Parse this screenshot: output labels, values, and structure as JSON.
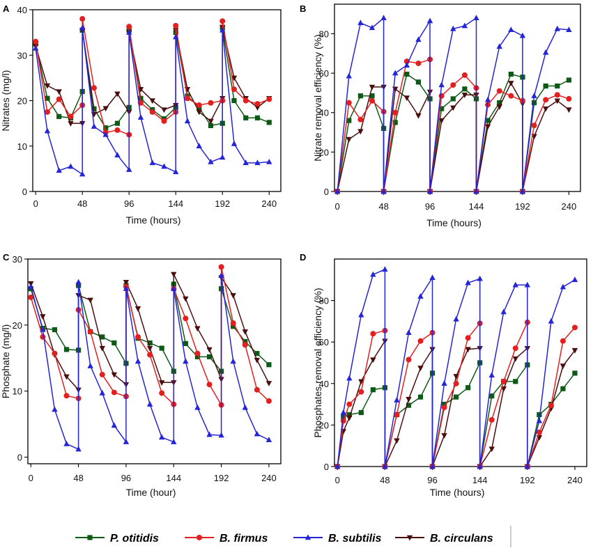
{
  "chart_data": [
    {
      "type": "line",
      "panel_label": "A",
      "xlabel": "Time (hours)",
      "ylabel": "Nitrates (mg/l)",
      "xlim": [
        -3,
        252
      ],
      "ylim": [
        0,
        40
      ],
      "xticks": [
        0,
        48,
        96,
        144,
        192,
        240
      ],
      "yticks": [
        0,
        10,
        20,
        30,
        40
      ],
      "series": [
        {
          "name": "P. otitidis",
          "x": [
            0,
            12,
            24,
            36,
            48,
            48,
            60,
            72,
            84,
            96,
            96,
            108,
            120,
            132,
            144,
            144,
            156,
            168,
            180,
            192,
            192,
            204,
            216,
            228,
            240
          ],
          "values": [
            32.5,
            20.5,
            16.5,
            16.2,
            22,
            35.5,
            18.2,
            14,
            15,
            18.5,
            35.5,
            20.5,
            18,
            16,
            18.5,
            35,
            21,
            18.5,
            14.5,
            15,
            36,
            20,
            16.2,
            16.2,
            15.2
          ]
        },
        {
          "name": "B. firmus",
          "x": [
            0,
            12,
            24,
            36,
            48,
            48,
            60,
            72,
            84,
            96,
            96,
            108,
            120,
            132,
            144,
            144,
            156,
            168,
            180,
            192,
            192,
            204,
            216,
            228,
            240
          ],
          "values": [
            33,
            17.5,
            20.3,
            16.5,
            19,
            38,
            22.8,
            13,
            13.5,
            12.5,
            36.3,
            19.5,
            17.5,
            15.5,
            17.5,
            36.5,
            20.5,
            19,
            19.5,
            20,
            37.5,
            22.5,
            20,
            19.3,
            20.3
          ]
        },
        {
          "name": "B. subtilis",
          "x": [
            0,
            12,
            24,
            36,
            48,
            48,
            60,
            72,
            84,
            96,
            96,
            108,
            120,
            132,
            144,
            144,
            156,
            168,
            180,
            192,
            192,
            204,
            216,
            228,
            240
          ],
          "values": [
            31.5,
            13.3,
            4.6,
            5.5,
            3.8,
            36,
            14.3,
            12.5,
            8,
            4.8,
            35,
            16.3,
            6.3,
            5.5,
            4.3,
            34,
            15.5,
            10,
            6.5,
            7.5,
            35.5,
            10.5,
            6.3,
            6.3,
            6.5
          ]
        },
        {
          "name": "B. circulans",
          "x": [
            0,
            12,
            24,
            36,
            48,
            48,
            60,
            72,
            84,
            96,
            96,
            108,
            120,
            132,
            144,
            144,
            156,
            168,
            180,
            192,
            192,
            204,
            216,
            228,
            240
          ],
          "values": [
            32,
            23.3,
            22,
            15,
            15,
            35.5,
            17,
            18.3,
            21.5,
            17.5,
            35,
            22.5,
            20,
            18,
            19,
            35.5,
            22.5,
            17.5,
            15.5,
            20.5,
            36.2,
            25,
            20.5,
            18.5,
            20.5
          ]
        }
      ]
    },
    {
      "type": "line",
      "panel_label": "B",
      "xlabel": "Time (hours)",
      "ylabel": "Nitrate removal efficiency (%)",
      "xlim": [
        -3,
        252
      ],
      "ylim": [
        0,
        95
      ],
      "xticks": [
        0,
        48,
        96,
        144,
        192,
        240
      ],
      "yticks": [
        0,
        20,
        40,
        60,
        80
      ],
      "series": [
        {
          "name": "P. otitidis",
          "x": [
            0,
            12,
            24,
            36,
            48,
            48,
            60,
            72,
            84,
            96,
            96,
            108,
            120,
            132,
            144,
            144,
            156,
            168,
            180,
            192,
            192,
            204,
            216,
            228,
            240
          ],
          "values": [
            0,
            36,
            48.5,
            48.5,
            32,
            0,
            35,
            59.5,
            55.5,
            47,
            0,
            42,
            47,
            52,
            47,
            0,
            36,
            45,
            59.5,
            58,
            0,
            45,
            53.5,
            53.5,
            56.5
          ]
        },
        {
          "name": "B. firmus",
          "x": [
            0,
            12,
            24,
            36,
            48,
            48,
            60,
            72,
            84,
            96,
            96,
            108,
            120,
            132,
            144,
            144,
            156,
            168,
            180,
            192,
            192,
            204,
            216,
            228,
            240
          ],
          "values": [
            0,
            45,
            36.5,
            46,
            40.5,
            0,
            40,
            66,
            65,
            67,
            0,
            48.5,
            54,
            59,
            52.5,
            0,
            44,
            51,
            48.5,
            46,
            0,
            33.5,
            46.5,
            49,
            47
          ]
        },
        {
          "name": "B. subtilis",
          "x": [
            0,
            12,
            24,
            36,
            48,
            48,
            60,
            72,
            84,
            96,
            96,
            108,
            120,
            132,
            144,
            144,
            156,
            168,
            180,
            192,
            192,
            204,
            216,
            228,
            240
          ],
          "values": [
            0,
            58.5,
            85.5,
            83,
            88,
            0,
            60,
            64,
            77,
            86.5,
            0,
            54,
            82.5,
            84,
            88,
            0,
            46.5,
            73.5,
            82,
            79,
            0,
            48.5,
            70.5,
            82.5,
            82
          ]
        },
        {
          "name": "B. circulans",
          "x": [
            0,
            12,
            24,
            36,
            48,
            48,
            60,
            72,
            84,
            96,
            96,
            108,
            120,
            132,
            144,
            144,
            156,
            168,
            180,
            192,
            192,
            204,
            216,
            228,
            240
          ],
          "values": [
            0,
            26.5,
            30.5,
            53,
            53,
            0,
            52,
            47.5,
            38.5,
            50.5,
            0,
            36,
            42.5,
            49,
            49,
            0,
            33,
            43,
            55,
            44.5,
            0,
            28,
            42,
            46,
            41.5
          ]
        }
      ]
    },
    {
      "type": "line",
      "panel_label": "C",
      "xlabel": "Time (hour)",
      "ylabel": "Phosphate (mg/l)",
      "xlim": [
        -3,
        252
      ],
      "ylim": [
        -1,
        30
      ],
      "xticks": [
        0,
        48,
        96,
        144,
        192,
        240
      ],
      "yticks": [
        0,
        10,
        20,
        30
      ],
      "series": [
        {
          "name": "P. otitidis",
          "x": [
            0,
            12,
            24,
            36,
            48,
            48,
            60,
            72,
            84,
            96,
            96,
            108,
            120,
            132,
            144,
            144,
            156,
            168,
            180,
            192,
            192,
            204,
            216,
            228,
            240
          ],
          "values": [
            25.5,
            19.5,
            19.3,
            16.3,
            16.2,
            26,
            19,
            18.2,
            17.3,
            14.2,
            26,
            18,
            17.3,
            16.5,
            13,
            26.2,
            17.2,
            15.2,
            15.2,
            13,
            25.5,
            19.8,
            17.5,
            15.7,
            14
          ]
        },
        {
          "name": "B. firmus",
          "x": [
            0,
            12,
            24,
            36,
            48,
            48,
            60,
            72,
            84,
            96,
            96,
            108,
            120,
            132,
            144,
            144,
            156,
            168,
            180,
            192,
            192,
            204,
            216,
            228,
            240
          ],
          "values": [
            24.2,
            18.2,
            15.7,
            9.3,
            8.9,
            22.3,
            19,
            12.5,
            9.8,
            9.2,
            25.8,
            18.2,
            15.5,
            9.7,
            8,
            25.5,
            21,
            15.7,
            11,
            7.9,
            28.8,
            20.3,
            17,
            10.2,
            8.5
          ]
        },
        {
          "name": "B. subtilis",
          "x": [
            0,
            12,
            24,
            36,
            48,
            48,
            60,
            72,
            84,
            96,
            96,
            108,
            120,
            132,
            144,
            144,
            156,
            168,
            180,
            192,
            192,
            204,
            216,
            228,
            240
          ],
          "values": [
            25.8,
            19.3,
            7.2,
            2,
            1.2,
            26.5,
            13.8,
            9.7,
            4.8,
            2.3,
            25.5,
            14.5,
            8,
            3,
            2.3,
            25.5,
            14.5,
            7.5,
            3.4,
            3.3,
            27.5,
            14.5,
            7.5,
            3.5,
            2.6
          ]
        },
        {
          "name": "B. circulans",
          "x": [
            0,
            12,
            24,
            36,
            48,
            48,
            60,
            72,
            84,
            96,
            96,
            108,
            120,
            132,
            144,
            144,
            156,
            168,
            180,
            192,
            192,
            204,
            216,
            228,
            240
          ],
          "values": [
            26.3,
            21.3,
            15.5,
            12.2,
            10.2,
            24.5,
            23.8,
            16.5,
            12.5,
            11,
            26.5,
            22.5,
            16.5,
            11.3,
            11.3,
            27.7,
            24,
            19.5,
            16.3,
            11.8,
            27.2,
            24.5,
            19,
            14.7,
            11.2
          ]
        }
      ]
    },
    {
      "type": "line",
      "panel_label": "D",
      "xlabel": "Time (hours)",
      "ylabel": "Phosphates removal efficiency (%)",
      "xlim": [
        -3,
        252
      ],
      "ylim": [
        0,
        100
      ],
      "xticks": [
        0,
        48,
        96,
        144,
        192,
        240
      ],
      "yticks": [
        0,
        20,
        40,
        60,
        80
      ],
      "series": [
        {
          "name": "P. otitidis",
          "x": [
            0,
            6,
            12,
            24,
            36,
            48,
            48,
            60,
            72,
            84,
            96,
            96,
            108,
            120,
            132,
            144,
            144,
            156,
            168,
            180,
            192,
            192,
            204,
            216,
            228,
            240
          ],
          "values": [
            0,
            24,
            25,
            26,
            37,
            38,
            0,
            25,
            29.5,
            33.5,
            45,
            0,
            30,
            33.5,
            38,
            50,
            0,
            34,
            41,
            41,
            49,
            0,
            25,
            30,
            37.5,
            45
          ]
        },
        {
          "name": "B. firmus",
          "x": [
            0,
            6,
            12,
            24,
            36,
            48,
            48,
            60,
            72,
            84,
            96,
            96,
            108,
            120,
            132,
            144,
            144,
            156,
            168,
            180,
            192,
            192,
            204,
            216,
            228,
            240
          ],
          "values": [
            0,
            22,
            30,
            36,
            64,
            65.5,
            0,
            25,
            51.5,
            60.5,
            64.5,
            0,
            28.5,
            40,
            62,
            69,
            0,
            22.5,
            41,
            57,
            69.5,
            0,
            16.5,
            29.5,
            60.5,
            67
          ]
        },
        {
          "name": "B. subtilis",
          "x": [
            0,
            6,
            12,
            24,
            36,
            48,
            48,
            60,
            72,
            84,
            96,
            96,
            108,
            120,
            132,
            144,
            144,
            156,
            168,
            180,
            192,
            192,
            204,
            216,
            228,
            240
          ],
          "values": [
            0,
            26,
            42.5,
            73,
            92.5,
            95,
            0,
            32,
            64.5,
            82,
            91,
            0,
            40,
            71,
            88.5,
            90.5,
            0,
            44,
            74.5,
            87.5,
            87.5,
            0,
            22,
            70,
            86.5,
            90
          ]
        },
        {
          "name": "B. circulans",
          "x": [
            0,
            6,
            12,
            24,
            36,
            48,
            48,
            60,
            72,
            84,
            96,
            96,
            108,
            120,
            132,
            144,
            144,
            156,
            168,
            180,
            192,
            192,
            204,
            216,
            228,
            240
          ],
          "values": [
            0,
            17,
            23.5,
            41,
            51.5,
            60.5,
            0,
            12.5,
            32.5,
            47.5,
            56.5,
            0,
            15,
            43.5,
            56.5,
            57,
            0,
            8.5,
            37.5,
            52,
            57,
            0,
            14,
            28,
            48.5,
            56
          ]
        }
      ]
    }
  ],
  "legend": {
    "placement": "bottom",
    "items": [
      {
        "name": "P. otitidis",
        "color": "#0d5a16",
        "marker": "square"
      },
      {
        "name": "B. firmus",
        "color": "#e41f1f",
        "marker": "circle"
      },
      {
        "name": "B. subtilis",
        "color": "#2424d8",
        "marker": "triangle-up"
      },
      {
        "name": "B. circulans",
        "color": "#4a0e0e",
        "marker": "triangle-down"
      }
    ]
  },
  "colors": {
    "P. otitidis": "#0d5a16",
    "B. firmus": "#e41f1f",
    "B. subtilis": "#2424d8",
    "B. circulans": "#4a0e0e"
  }
}
